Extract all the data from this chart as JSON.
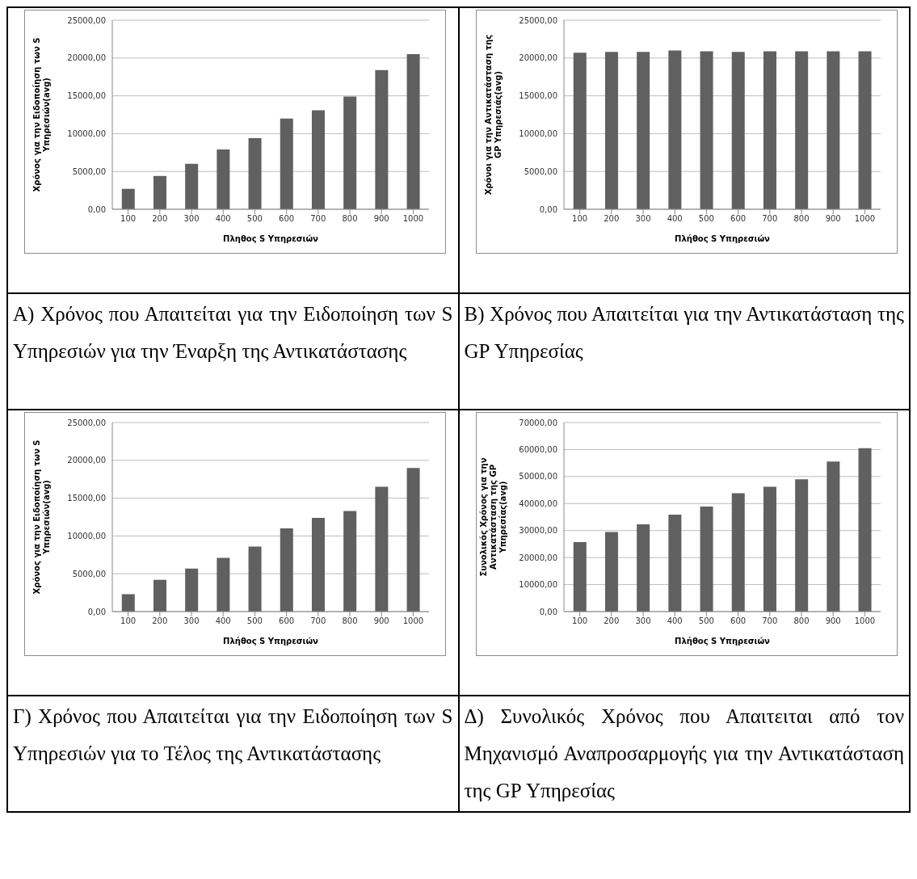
{
  "chart_data": [
    {
      "type": "bar",
      "xlabel": "Πληθος S Υπηρεσιών",
      "ylabel": "Χρόνος για την Ειδοποίηση των S Υπηρεσιών(avg)",
      "categories": [
        "100",
        "200",
        "300",
        "400",
        "500",
        "600",
        "700",
        "800",
        "900",
        "1000"
      ],
      "values": [
        2700,
        4400,
        6000,
        7900,
        9400,
        12000,
        13100,
        14900,
        18400,
        20500
      ],
      "color": "#606060",
      "ylim": [
        0,
        25000
      ],
      "yticks": [
        {
          "value": 0,
          "label": "0,00"
        },
        {
          "value": 5000,
          "label": "5000,00"
        },
        {
          "value": 10000,
          "label": "10000,00"
        },
        {
          "value": 15000,
          "label": "15000,00"
        },
        {
          "value": 20000,
          "label": "20000,00"
        },
        {
          "value": 25000,
          "label": "25000,00"
        }
      ],
      "grid": "y",
      "annotations": [
        "Α) Χρόνος που Απαιτείται για την Ειδοποίηση των S Υπηρεσιών για την Έναρξη της Αντικατάστασης"
      ]
    },
    {
      "type": "bar",
      "xlabel": "Πλήθος S Υπηρεσιών",
      "ylabel": "Χρόνοι για την Αντικατάσταση της GP Υπηρεσιάς(avg)",
      "categories": [
        "100",
        "200",
        "300",
        "400",
        "500",
        "600",
        "700",
        "800",
        "900",
        "1000"
      ],
      "values": [
        20700,
        20800,
        20800,
        21000,
        20900,
        20800,
        20900,
        20900,
        20900,
        20900
      ],
      "color": "#606060",
      "ylim": [
        0,
        25000
      ],
      "yticks": [
        {
          "value": 0,
          "label": "0,00"
        },
        {
          "value": 5000,
          "label": "5000,00"
        },
        {
          "value": 10000,
          "label": "10000,00"
        },
        {
          "value": 15000,
          "label": "15000,00"
        },
        {
          "value": 20000,
          "label": "20000,00"
        },
        {
          "value": 25000,
          "label": "25000,00"
        }
      ],
      "grid": "y",
      "annotations": [
        "Β) Χρόνος που Απαιτείται για την Αντικατάσταση της GP Υπηρεσίας"
      ]
    },
    {
      "type": "bar",
      "xlabel": "Πλήθος S Υπηρεσιών",
      "ylabel": "Χρόνος για την Ειδοποίηση των S Υπηρεσιών(avg)",
      "categories": [
        "100",
        "200",
        "300",
        "400",
        "500",
        "600",
        "700",
        "800",
        "900",
        "1000"
      ],
      "values": [
        2300,
        4200,
        5700,
        7100,
        8600,
        11000,
        12400,
        13300,
        16500,
        19000
      ],
      "color": "#606060",
      "ylim": [
        0,
        25000
      ],
      "yticks": [
        {
          "value": 0,
          "label": "0,00"
        },
        {
          "value": 5000,
          "label": "5000,00"
        },
        {
          "value": 10000,
          "label": "10000,00"
        },
        {
          "value": 15000,
          "label": "15000,00"
        },
        {
          "value": 20000,
          "label": "20000,00"
        },
        {
          "value": 25000,
          "label": "25000,00"
        }
      ],
      "grid": "y",
      "annotations": [
        "Γ) Χρόνος που Απαιτείται για την Ειδοποίηση των S Υπηρεσιών για το Τέλος της Αντικατάστασης"
      ]
    },
    {
      "type": "bar",
      "xlabel": "Πλήθος S Υπηρεσιών",
      "ylabel": "Συνολικός Χρόνος για την Αντικατάσταση της GP Υπηρεσίας(avg)",
      "categories": [
        "100",
        "200",
        "300",
        "400",
        "500",
        "600",
        "700",
        "800",
        "900",
        "1000"
      ],
      "values": [
        25700,
        29500,
        32300,
        35900,
        38900,
        43800,
        46200,
        49000,
        55600,
        60500
      ],
      "color": "#606060",
      "ylim": [
        0,
        70000
      ],
      "yticks": [
        {
          "value": 0,
          "label": "0,00"
        },
        {
          "value": 10000,
          "label": "10000,00"
        },
        {
          "value": 20000,
          "label": "20000,00"
        },
        {
          "value": 30000,
          "label": "30000,00"
        },
        {
          "value": 40000,
          "label": "40000,00"
        },
        {
          "value": 50000,
          "label": "50000,00"
        },
        {
          "value": 60000,
          "label": "60000,00"
        },
        {
          "value": 70000,
          "label": "70000,00"
        }
      ],
      "grid": "y",
      "annotations": [
        "Δ) Συνολικός Χρόνος που Απαιτειται από τον Μηχανισμό Αναπροσαρμογής για την Αντικατάσταση της GP Υπηρεσίας"
      ]
    }
  ]
}
